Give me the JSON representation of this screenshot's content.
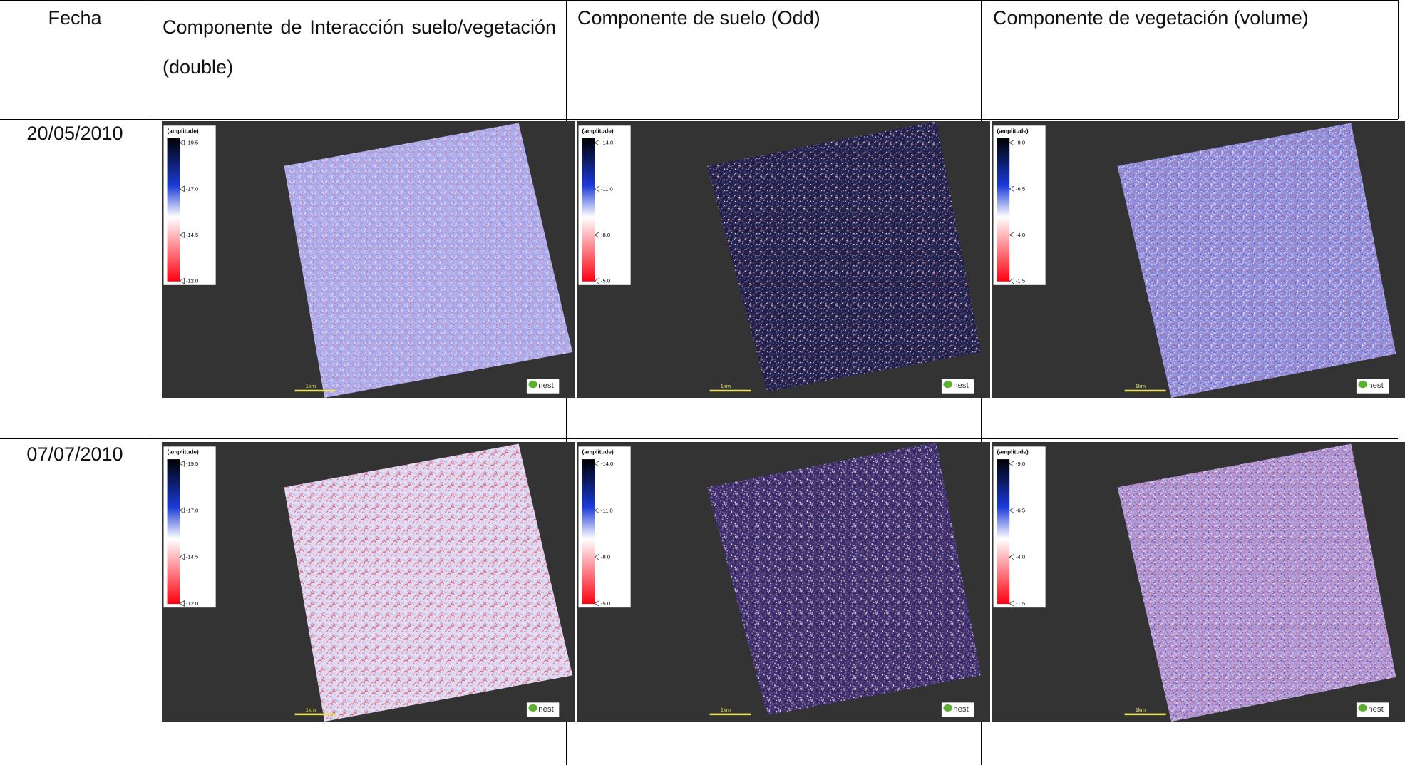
{
  "header": [
    "Fecha",
    "Componente de Interacción suelo/vegetación (double)",
    "Componente de suelo (Odd)",
    "Componente de vegetación (volume)"
  ],
  "rows": [
    {
      "date": "20/05/2010",
      "images": [
        {
          "legend_title": "(amplitude)",
          "legend_ticks": [
            "-19.5",
            "-17.0",
            "-14.5",
            "-12.0"
          ],
          "scale": "1km",
          "logo": "nest"
        },
        {
          "legend_title": "(amplitude)",
          "legend_ticks": [
            "-14.0",
            "-11.0",
            "-8.0",
            "-5.0"
          ],
          "scale": "1km",
          "logo": "nest"
        },
        {
          "legend_title": "(amplitude)",
          "legend_ticks": [
            "-9.0",
            "-6.5",
            "-4.0",
            "-1.5"
          ],
          "scale": "1km",
          "logo": "nest"
        }
      ]
    },
    {
      "date": "07/07/2010",
      "images": [
        {
          "legend_title": "(amplitude)",
          "legend_ticks": [
            "-19.5",
            "-17.0",
            "-14.5",
            "-12.0"
          ],
          "scale": "1km",
          "logo": "nest"
        },
        {
          "legend_title": "(amplitude)",
          "legend_ticks": [
            "-14.0",
            "-11.0",
            "-8.0",
            "-5.0"
          ],
          "scale": "1km",
          "logo": "nest"
        },
        {
          "legend_title": "(amplitude)",
          "legend_ticks": [
            "-9.0",
            "-6.5",
            "-4.0",
            "-1.5"
          ],
          "scale": "1km",
          "logo": "nest"
        }
      ]
    }
  ]
}
